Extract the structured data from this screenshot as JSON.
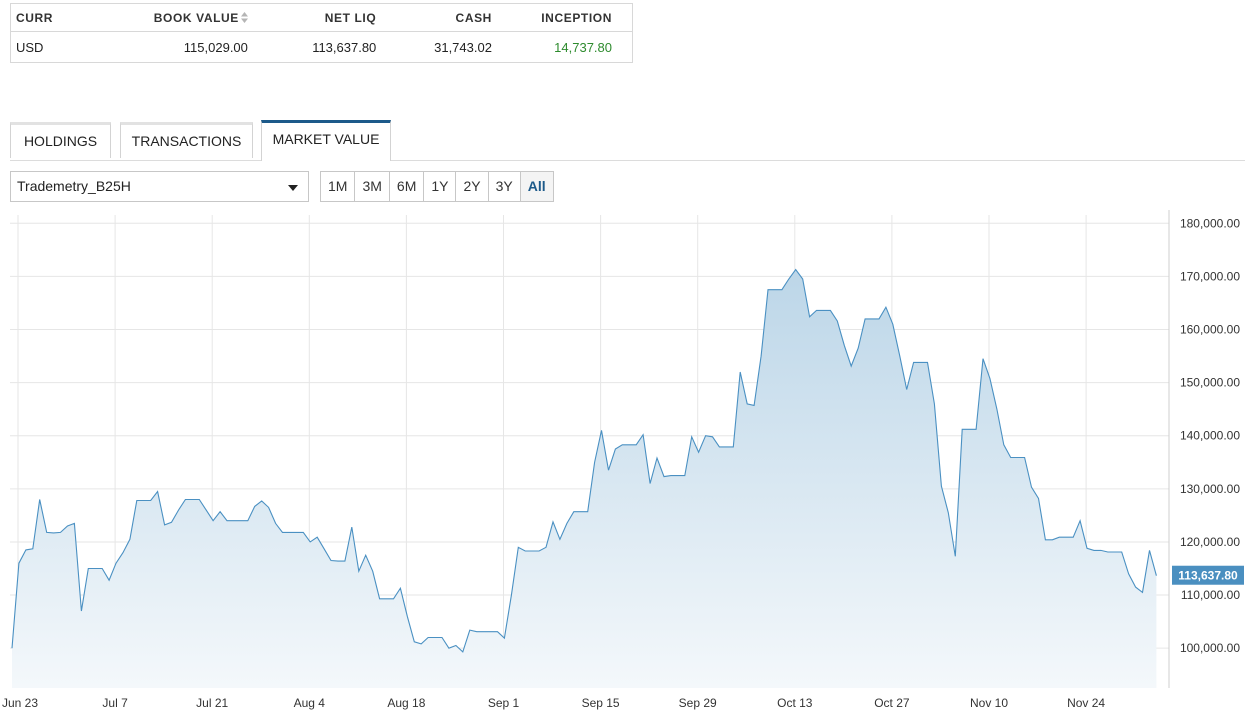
{
  "summary": {
    "headers": {
      "curr": "CURR",
      "book_value": "BOOK VALUE",
      "net_liq": "NET LIQ",
      "cash": "CASH",
      "inception": "INCEPTION"
    },
    "row": {
      "curr": "USD",
      "book_value": "115,029.00",
      "net_liq": "113,637.80",
      "cash": "31,743.02",
      "inception": "14,737.80"
    },
    "icons": {
      "sort": "sort-icon"
    },
    "colors": {
      "positive": "#2e8b2e"
    }
  },
  "tabs": [
    {
      "label": "HOLDINGS",
      "active": false
    },
    {
      "label": "TRANSACTIONS",
      "active": false
    },
    {
      "label": "MARKET VALUE",
      "active": true
    }
  ],
  "account_select": {
    "value": "Trademetry_B25H",
    "icon": "caret-down-icon"
  },
  "ranges": [
    {
      "label": "1M",
      "active": false
    },
    {
      "label": "3M",
      "active": false
    },
    {
      "label": "6M",
      "active": false
    },
    {
      "label": "1Y",
      "active": false
    },
    {
      "label": "2Y",
      "active": false
    },
    {
      "label": "3Y",
      "active": false
    },
    {
      "label": "All",
      "active": true
    }
  ],
  "chart_data": {
    "type": "area",
    "title": "",
    "xlabel": "",
    "ylabel": "",
    "x_tick_labels": [
      "Jun 23",
      "Jul 7",
      "Jul 21",
      "Aug 4",
      "Aug 18",
      "Sep 1",
      "Sep 15",
      "Sep 29",
      "Oct 13",
      "Oct 27",
      "Nov 10",
      "Nov 24"
    ],
    "y_tick_labels": [
      "100,000.00",
      "110,000.00",
      "120,000.00",
      "130,000.00",
      "140,000.00",
      "150,000.00",
      "160,000.00",
      "170,000.00",
      "180,000.00"
    ],
    "y_ticks": [
      100000,
      110000,
      120000,
      130000,
      140000,
      150000,
      160000,
      170000,
      180000
    ],
    "ylim": [
      92500,
      182500
    ],
    "xlim": [
      "2025-06-23",
      "2025-12-03"
    ],
    "y_axis_position": "right",
    "grid": true,
    "last_value_label": "113,637.80",
    "colors": {
      "line": "#4a90c2",
      "fill_top": "#bcd6e8",
      "fill_bottom": "#f4f8fb",
      "last_label_bg": "#4a8fc0"
    },
    "series": [
      {
        "values": [
          [
            "2025-06-23",
            100000
          ],
          [
            "2025-06-24",
            116000
          ],
          [
            "2025-06-25",
            118500
          ],
          [
            "2025-06-26",
            118700
          ],
          [
            "2025-06-27",
            128000
          ],
          [
            "2025-06-28",
            121800
          ],
          [
            "2025-06-29",
            121700
          ],
          [
            "2025-06-30",
            121800
          ],
          [
            "2025-07-01",
            123000
          ],
          [
            "2025-07-02",
            123500
          ],
          [
            "2025-07-03",
            107000
          ],
          [
            "2025-07-04",
            115000
          ],
          [
            "2025-07-05",
            115000
          ],
          [
            "2025-07-06",
            115000
          ],
          [
            "2025-07-07",
            112800
          ],
          [
            "2025-07-08",
            116000
          ],
          [
            "2025-07-09",
            118000
          ],
          [
            "2025-07-10",
            120500
          ],
          [
            "2025-07-11",
            127800
          ],
          [
            "2025-07-12",
            127800
          ],
          [
            "2025-07-13",
            127800
          ],
          [
            "2025-07-14",
            129500
          ],
          [
            "2025-07-15",
            123200
          ],
          [
            "2025-07-16",
            123700
          ],
          [
            "2025-07-17",
            126000
          ],
          [
            "2025-07-18",
            128000
          ],
          [
            "2025-07-19",
            128000
          ],
          [
            "2025-07-20",
            128000
          ],
          [
            "2025-07-21",
            126000
          ],
          [
            "2025-07-22",
            124000
          ],
          [
            "2025-07-23",
            125700
          ],
          [
            "2025-07-24",
            124000
          ],
          [
            "2025-07-25",
            124000
          ],
          [
            "2025-07-26",
            124000
          ],
          [
            "2025-07-27",
            124000
          ],
          [
            "2025-07-28",
            126700
          ],
          [
            "2025-07-29",
            127700
          ],
          [
            "2025-07-30",
            126500
          ],
          [
            "2025-07-31",
            123500
          ],
          [
            "2025-08-01",
            121800
          ],
          [
            "2025-08-02",
            121800
          ],
          [
            "2025-08-03",
            121800
          ],
          [
            "2025-08-04",
            121800
          ],
          [
            "2025-08-05",
            120000
          ],
          [
            "2025-08-06",
            120900
          ],
          [
            "2025-08-07",
            118700
          ],
          [
            "2025-08-08",
            116500
          ],
          [
            "2025-08-09",
            116400
          ],
          [
            "2025-08-10",
            116400
          ],
          [
            "2025-08-11",
            122800
          ],
          [
            "2025-08-12",
            114500
          ],
          [
            "2025-08-13",
            117500
          ],
          [
            "2025-08-14",
            114500
          ],
          [
            "2025-08-15",
            109300
          ],
          [
            "2025-08-16",
            109300
          ],
          [
            "2025-08-17",
            109300
          ],
          [
            "2025-08-18",
            111300
          ],
          [
            "2025-08-19",
            106000
          ],
          [
            "2025-08-20",
            101200
          ],
          [
            "2025-08-21",
            100800
          ],
          [
            "2025-08-22",
            102000
          ],
          [
            "2025-08-23",
            102000
          ],
          [
            "2025-08-24",
            102000
          ],
          [
            "2025-08-25",
            100000
          ],
          [
            "2025-08-26",
            100500
          ],
          [
            "2025-08-27",
            99300
          ],
          [
            "2025-08-28",
            103400
          ],
          [
            "2025-08-29",
            103100
          ],
          [
            "2025-08-30",
            103100
          ],
          [
            "2025-08-31",
            103100
          ],
          [
            "2025-09-01",
            103100
          ],
          [
            "2025-09-02",
            101900
          ],
          [
            "2025-09-03",
            110000
          ],
          [
            "2025-09-04",
            119000
          ],
          [
            "2025-09-05",
            118300
          ],
          [
            "2025-09-06",
            118300
          ],
          [
            "2025-09-07",
            118300
          ],
          [
            "2025-09-08",
            119000
          ],
          [
            "2025-09-09",
            123800
          ],
          [
            "2025-09-10",
            120500
          ],
          [
            "2025-09-11",
            123500
          ],
          [
            "2025-09-12",
            125700
          ],
          [
            "2025-09-13",
            125700
          ],
          [
            "2025-09-14",
            125700
          ],
          [
            "2025-09-15",
            135000
          ],
          [
            "2025-09-16",
            141000
          ],
          [
            "2025-09-17",
            133500
          ],
          [
            "2025-09-18",
            137500
          ],
          [
            "2025-09-19",
            138300
          ],
          [
            "2025-09-20",
            138300
          ],
          [
            "2025-09-21",
            138300
          ],
          [
            "2025-09-22",
            140200
          ],
          [
            "2025-09-23",
            131000
          ],
          [
            "2025-09-24",
            135800
          ],
          [
            "2025-09-25",
            132300
          ],
          [
            "2025-09-26",
            132500
          ],
          [
            "2025-09-27",
            132500
          ],
          [
            "2025-09-28",
            132500
          ],
          [
            "2025-09-29",
            139800
          ],
          [
            "2025-09-30",
            136900
          ],
          [
            "2025-10-01",
            140000
          ],
          [
            "2025-10-02",
            139800
          ],
          [
            "2025-10-03",
            137900
          ],
          [
            "2025-10-04",
            137900
          ],
          [
            "2025-10-05",
            137900
          ],
          [
            "2025-10-06",
            152000
          ],
          [
            "2025-10-07",
            146000
          ],
          [
            "2025-10-08",
            145700
          ],
          [
            "2025-10-09",
            155000
          ],
          [
            "2025-10-10",
            167500
          ],
          [
            "2025-10-11",
            167500
          ],
          [
            "2025-10-12",
            167500
          ],
          [
            "2025-10-13",
            169500
          ],
          [
            "2025-10-14",
            171300
          ],
          [
            "2025-10-15",
            169500
          ],
          [
            "2025-10-16",
            162400
          ],
          [
            "2025-10-17",
            163600
          ],
          [
            "2025-10-18",
            163600
          ],
          [
            "2025-10-19",
            163600
          ],
          [
            "2025-10-20",
            161600
          ],
          [
            "2025-10-21",
            157000
          ],
          [
            "2025-10-22",
            153100
          ],
          [
            "2025-10-23",
            156500
          ],
          [
            "2025-10-24",
            162000
          ],
          [
            "2025-10-25",
            162000
          ],
          [
            "2025-10-26",
            162000
          ],
          [
            "2025-10-27",
            164200
          ],
          [
            "2025-10-28",
            161000
          ],
          [
            "2025-10-29",
            155000
          ],
          [
            "2025-10-30",
            148700
          ],
          [
            "2025-10-31",
            153800
          ],
          [
            "2025-11-01",
            153800
          ],
          [
            "2025-11-02",
            153800
          ],
          [
            "2025-11-03",
            146000
          ],
          [
            "2025-11-04",
            130500
          ],
          [
            "2025-11-05",
            125500
          ],
          [
            "2025-11-06",
            117300
          ],
          [
            "2025-11-07",
            141200
          ],
          [
            "2025-11-08",
            141200
          ],
          [
            "2025-11-09",
            141200
          ],
          [
            "2025-11-10",
            154500
          ],
          [
            "2025-11-11",
            150800
          ],
          [
            "2025-11-12",
            145000
          ],
          [
            "2025-11-13",
            138300
          ],
          [
            "2025-11-14",
            135900
          ],
          [
            "2025-11-15",
            135900
          ],
          [
            "2025-11-16",
            135900
          ],
          [
            "2025-11-17",
            130300
          ],
          [
            "2025-11-18",
            128200
          ],
          [
            "2025-11-19",
            120400
          ],
          [
            "2025-11-20",
            120400
          ],
          [
            "2025-11-21",
            120900
          ],
          [
            "2025-11-22",
            120900
          ],
          [
            "2025-11-23",
            120900
          ],
          [
            "2025-11-24",
            124000
          ],
          [
            "2025-11-25",
            118800
          ],
          [
            "2025-11-26",
            118400
          ],
          [
            "2025-11-27",
            118400
          ],
          [
            "2025-11-28",
            118100
          ],
          [
            "2025-11-29",
            118100
          ],
          [
            "2025-11-30",
            118100
          ],
          [
            "2025-12-01",
            114000
          ],
          [
            "2025-12-02",
            111500
          ],
          [
            "2025-12-03",
            110500
          ],
          [
            "2025-12-04",
            118400
          ],
          [
            "2025-12-05",
            113637.8
          ]
        ]
      }
    ]
  }
}
